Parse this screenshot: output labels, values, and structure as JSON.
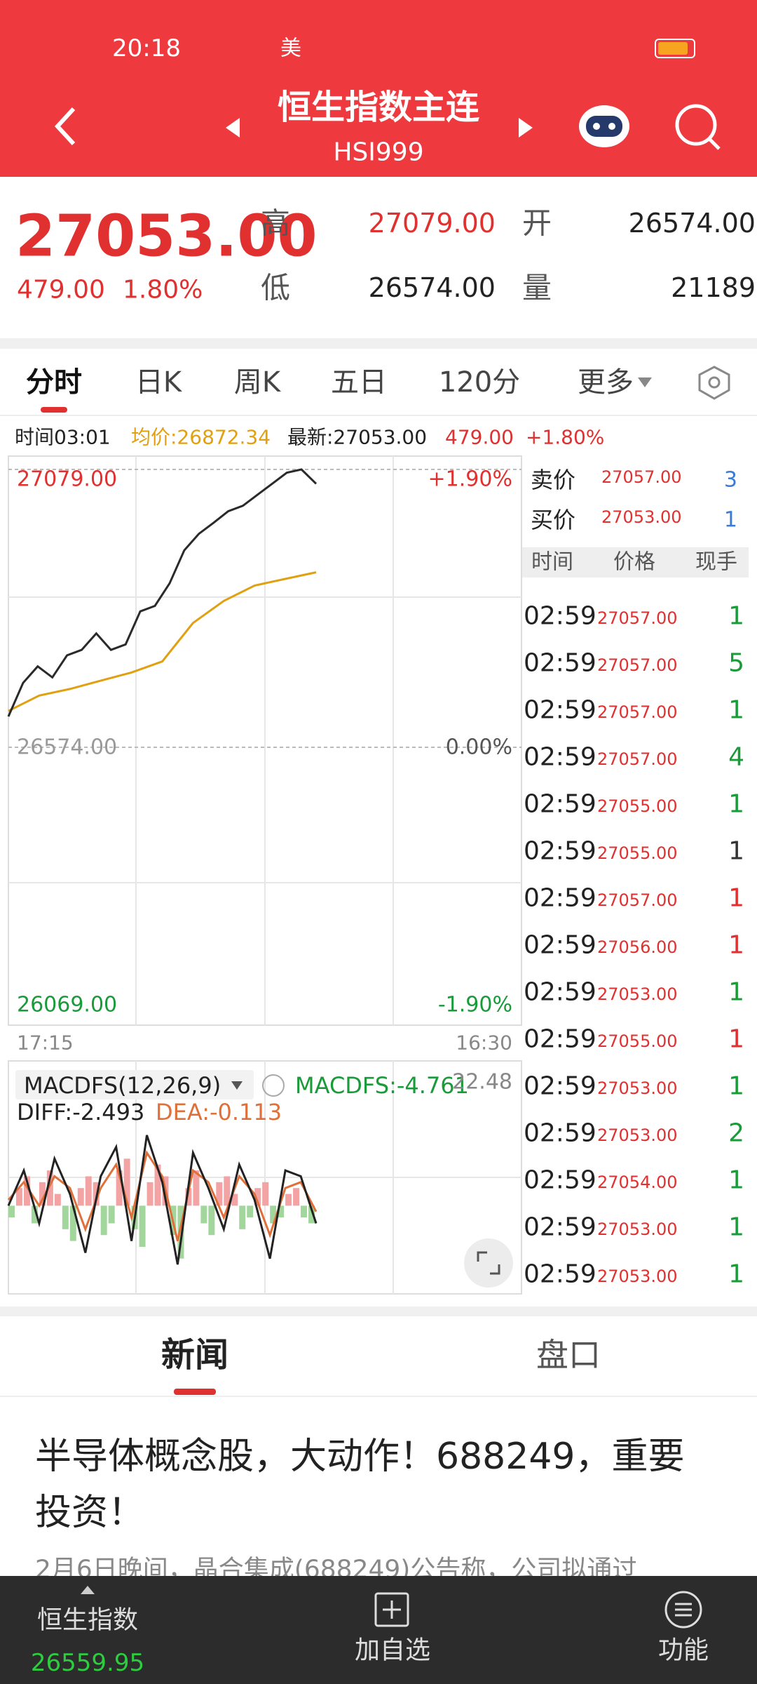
{
  "status_bar": {
    "time": "20:18",
    "app": "美"
  },
  "header": {
    "title": "恒生指数主连",
    "code": "HSI999"
  },
  "quote": {
    "price": "27053.00",
    "change": "479.00",
    "change_pct": "1.80%",
    "high_label": "高",
    "high": "27079.00",
    "open_label": "开",
    "open": "26574.00",
    "low_label": "低",
    "low": "26574.00",
    "volume_label": "量",
    "volume": "21189"
  },
  "tabs": [
    "分时",
    "日K",
    "周K",
    "五日",
    "120分",
    "更多"
  ],
  "info": {
    "time": "时间03:01",
    "avg": "均价:26872.34",
    "latest": "最新:27053.00",
    "change": "479.00",
    "change_pct": "+1.80%"
  },
  "intraday": {
    "high_label": "27079.00",
    "base_label": "26574.00",
    "low_label": "26069.00",
    "high_pct": "+1.90%",
    "base_pct": "0.00%",
    "low_pct": "-1.90%",
    "ylim": [
      26069,
      27079
    ],
    "high": 27079,
    "base": 26574,
    "price": [
      26630,
      26691,
      26721,
      26701,
      26741,
      26751,
      26781,
      26751,
      26761,
      26821,
      26831,
      26872,
      26932,
      26962,
      26982,
      27003,
      27013,
      27033,
      27053,
      27073,
      27079,
      27053
    ],
    "avg": [
      26640,
      26668,
      26680,
      26695,
      26710,
      26730,
      26800,
      26840,
      26868,
      26880,
      26892
    ],
    "start_time": "17:15",
    "end_time": "16:30"
  },
  "macd": {
    "title": "MACDFS(12,26,9)",
    "value": "MACDFS:-4.761",
    "top": "22.48",
    "diff": "DIFF:-2.493",
    "dea": "DEA:-0.113",
    "ylim": [
      -15,
      22.48
    ],
    "diff_line": [
      0,
      6,
      -3,
      8,
      2,
      -8,
      5,
      10,
      -6,
      12,
      4,
      -10,
      9,
      3,
      -4,
      7,
      1,
      -9,
      6,
      5,
      -3
    ],
    "dea_line": [
      1,
      4,
      0,
      5,
      3,
      -4,
      3,
      7,
      -2,
      9,
      5,
      -6,
      6,
      4,
      -2,
      5,
      2,
      -5,
      3,
      4,
      -1
    ],
    "histogram": [
      -2,
      3,
      5,
      -3,
      4,
      6,
      2,
      -4,
      -6,
      3,
      5,
      4,
      -5,
      -3,
      6,
      8,
      -4,
      -7,
      4,
      7,
      5,
      -5,
      -9,
      3,
      6,
      -3,
      -5,
      4,
      5,
      2,
      -4,
      -2,
      3,
      4,
      -3,
      -2,
      2,
      3,
      -2,
      -3
    ]
  },
  "order_book": {
    "ask_label": "卖价",
    "ask": "27057.00",
    "ask_vol": "3",
    "bid_label": "买价",
    "bid": "27053.00",
    "bid_vol": "1"
  },
  "trades": {
    "columns": [
      "时间",
      "价格",
      "现手"
    ],
    "rows": [
      {
        "time": "02:59",
        "price": "27057.00",
        "volume": "1",
        "color": "#1a9b3a"
      },
      {
        "time": "02:59",
        "price": "27057.00",
        "volume": "5",
        "color": "#1a9b3a"
      },
      {
        "time": "02:59",
        "price": "27057.00",
        "volume": "1",
        "color": "#1a9b3a"
      },
      {
        "time": "02:59",
        "price": "27057.00",
        "volume": "4",
        "color": "#1a9b3a"
      },
      {
        "time": "02:59",
        "price": "27055.00",
        "volume": "1",
        "color": "#1a9b3a"
      },
      {
        "time": "02:59",
        "price": "27055.00",
        "volume": "1",
        "color": "#333333"
      },
      {
        "time": "02:59",
        "price": "27057.00",
        "volume": "1",
        "color": "#e0302f"
      },
      {
        "time": "02:59",
        "price": "27056.00",
        "volume": "1",
        "color": "#e0302f"
      },
      {
        "time": "02:59",
        "price": "27053.00",
        "volume": "1",
        "color": "#1a9b3a"
      },
      {
        "time": "02:59",
        "price": "27055.00",
        "volume": "1",
        "color": "#e0302f"
      },
      {
        "time": "02:59",
        "price": "27053.00",
        "volume": "1",
        "color": "#1a9b3a"
      },
      {
        "time": "02:59",
        "price": "27053.00",
        "volume": "2",
        "color": "#1a9b3a"
      },
      {
        "time": "02:59",
        "price": "27054.00",
        "volume": "1",
        "color": "#1a9b3a"
      },
      {
        "time": "02:59",
        "price": "27053.00",
        "volume": "1",
        "color": "#1a9b3a"
      },
      {
        "time": "02:59",
        "price": "27053.00",
        "volume": "1",
        "color": "#1a9b3a"
      }
    ]
  },
  "news_tabs": [
    "新闻",
    "盘口"
  ],
  "news": {
    "headline_lines": [
      "半导体概念股，大动作！688249，重要",
      "投资！"
    ],
    "snippet": "2月6日晚间，晶合集成(688249)公告称，公司拟通过"
  },
  "bottom_bar": {
    "index_name": "恒生指数",
    "index_value": "26559.95",
    "watchlist": "加自选",
    "functions": "功能"
  }
}
